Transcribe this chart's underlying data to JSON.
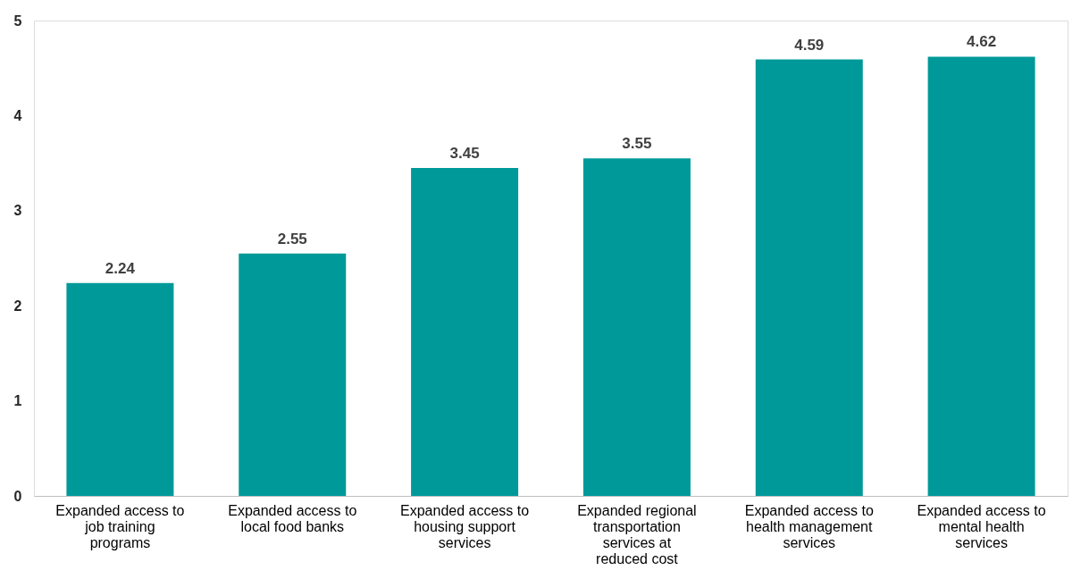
{
  "chart_data": {
    "type": "bar",
    "categories": [
      "Expanded access to job training programs",
      "Expanded access to local food banks",
      "Expanded access to housing support services",
      "Expanded regional transportation services at reduced cost",
      "Expanded access to health management services",
      "Expanded access to mental health services"
    ],
    "values": [
      2.24,
      2.55,
      3.45,
      3.55,
      4.59,
      4.62
    ],
    "color": "#009999",
    "ylim": [
      0,
      5
    ],
    "yticks": [
      0,
      1,
      2,
      3,
      4,
      5
    ],
    "grid": false,
    "data_labels": true
  }
}
